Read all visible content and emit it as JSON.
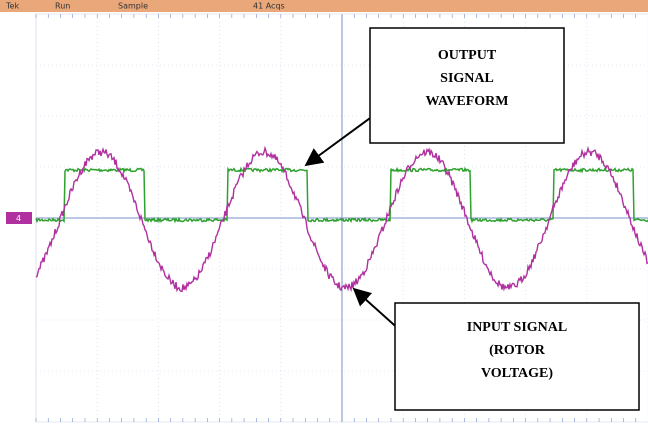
{
  "status_bar": {
    "brand": "Tek",
    "mode": "Run",
    "acquisition": "Sample",
    "count": "41 Acqs"
  },
  "channel_marker": "4",
  "annotations": [
    {
      "lines": [
        "OUTPUT",
        "SIGNAL",
        "WAVEFORM"
      ]
    },
    {
      "lines": [
        "INPUT SIGNAL",
        "(ROTOR",
        "VOLTAGE)"
      ]
    }
  ]
}
